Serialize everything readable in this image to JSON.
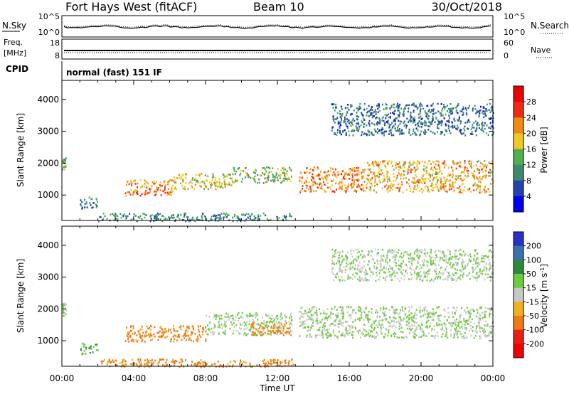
{
  "header": {
    "title": "Fort Hays West (fitACF)",
    "beam": "Beam 10",
    "date": "30/Oct/2018"
  },
  "noise_panel": {
    "left_label": "N.Sky",
    "left_ticks": [
      "10^5",
      "10^0"
    ],
    "right_label": "N.Search",
    "right_ticks": [
      "10^5",
      "10^0"
    ]
  },
  "freq_panel": {
    "left_label_1": "Freq.",
    "left_label_2": "[MHz]",
    "left_ticks": [
      "18",
      "8"
    ],
    "right_label": "Nave",
    "right_ticks": [
      "60",
      "0"
    ]
  },
  "cpid": {
    "label": "CPID",
    "mode": "normal (fast) 151 IF"
  },
  "colors": {
    "power": [
      "#0000ee",
      "#2244aa",
      "#3d8a6e",
      "#50b050",
      "#f0c828",
      "#f08a10",
      "#ee2a10",
      "#ee0000"
    ],
    "velocity": [
      "#2a30c8",
      "#3a70b0",
      "#2a8a3a",
      "#6ccc3a",
      "#c8c8c8",
      "#f0b020",
      "#f07a10",
      "#e82010",
      "#ee0000"
    ]
  },
  "chart_data": [
    {
      "type": "heatmap",
      "name": "power",
      "xlabel": "Time UT",
      "ylabel": "Slant Range [km]",
      "x_ticks": [
        "00:00",
        "04:00",
        "08:00",
        "12:00",
        "16:00",
        "20:00",
        "00:00"
      ],
      "x_range_hours": [
        0,
        24
      ],
      "y_ticks": [
        1000,
        2000,
        3000,
        4000
      ],
      "y_range": [
        200,
        4600
      ],
      "colorbar": {
        "label": "Power [dB]",
        "ticks": [
          4,
          8,
          12,
          16,
          20,
          24,
          28
        ],
        "range": [
          0,
          32
        ]
      },
      "regions": [
        {
          "t": [
            0.0,
            0.2
          ],
          "r": [
            1800,
            2200
          ],
          "level": 12
        },
        {
          "t": [
            1.0,
            2.0
          ],
          "r": [
            600,
            950
          ],
          "level": 10
        },
        {
          "t": [
            3.5,
            6.2
          ],
          "r": [
            1000,
            1500
          ],
          "level": 22
        },
        {
          "t": [
            6.2,
            9.5
          ],
          "r": [
            1200,
            1700
          ],
          "level": 18
        },
        {
          "t": [
            9.5,
            12.8
          ],
          "r": [
            1400,
            1900
          ],
          "level": 14
        },
        {
          "t": [
            13.2,
            16.8
          ],
          "r": [
            1100,
            1900
          ],
          "level": 22
        },
        {
          "t": [
            16.8,
            24.0
          ],
          "r": [
            1100,
            2100
          ],
          "level": 20
        },
        {
          "t": [
            15.0,
            24.0
          ],
          "r": [
            2900,
            3900
          ],
          "level": 8
        },
        {
          "t": [
            2.0,
            13.0
          ],
          "r": [
            200,
            450
          ],
          "level": 10
        }
      ]
    },
    {
      "type": "heatmap",
      "name": "velocity",
      "xlabel": "Time UT",
      "ylabel": "Slant Range [km]",
      "x_ticks": [
        "00:00",
        "04:00",
        "08:00",
        "12:00",
        "16:00",
        "20:00",
        "00:00"
      ],
      "x_range_hours": [
        0,
        24
      ],
      "y_ticks": [
        1000,
        2000,
        3000,
        4000
      ],
      "y_range": [
        200,
        4600
      ],
      "colorbar": {
        "label": "Velocity [m s^-1]",
        "ticks": [
          200,
          100,
          50,
          15,
          -15,
          -50,
          -100,
          -200
        ],
        "range": [
          -250,
          250
        ]
      },
      "regions": [
        {
          "t": [
            0.0,
            0.2
          ],
          "r": [
            1800,
            2200
          ],
          "level": 0
        },
        {
          "t": [
            1.0,
            2.0
          ],
          "r": [
            600,
            950
          ],
          "level": 30
        },
        {
          "t": [
            3.5,
            8.0
          ],
          "r": [
            1000,
            1500
          ],
          "level": -40
        },
        {
          "t": [
            8.0,
            12.8
          ],
          "r": [
            1200,
            1900
          ],
          "level": 0
        },
        {
          "t": [
            10.5,
            12.8
          ],
          "r": [
            1200,
            1600
          ],
          "level": -40
        },
        {
          "t": [
            13.2,
            24.0
          ],
          "r": [
            1100,
            2100
          ],
          "level": 0
        },
        {
          "t": [
            15.0,
            24.0
          ],
          "r": [
            2900,
            3900
          ],
          "level": 0
        },
        {
          "t": [
            2.0,
            13.0
          ],
          "r": [
            200,
            450
          ],
          "level": -40
        }
      ]
    }
  ]
}
